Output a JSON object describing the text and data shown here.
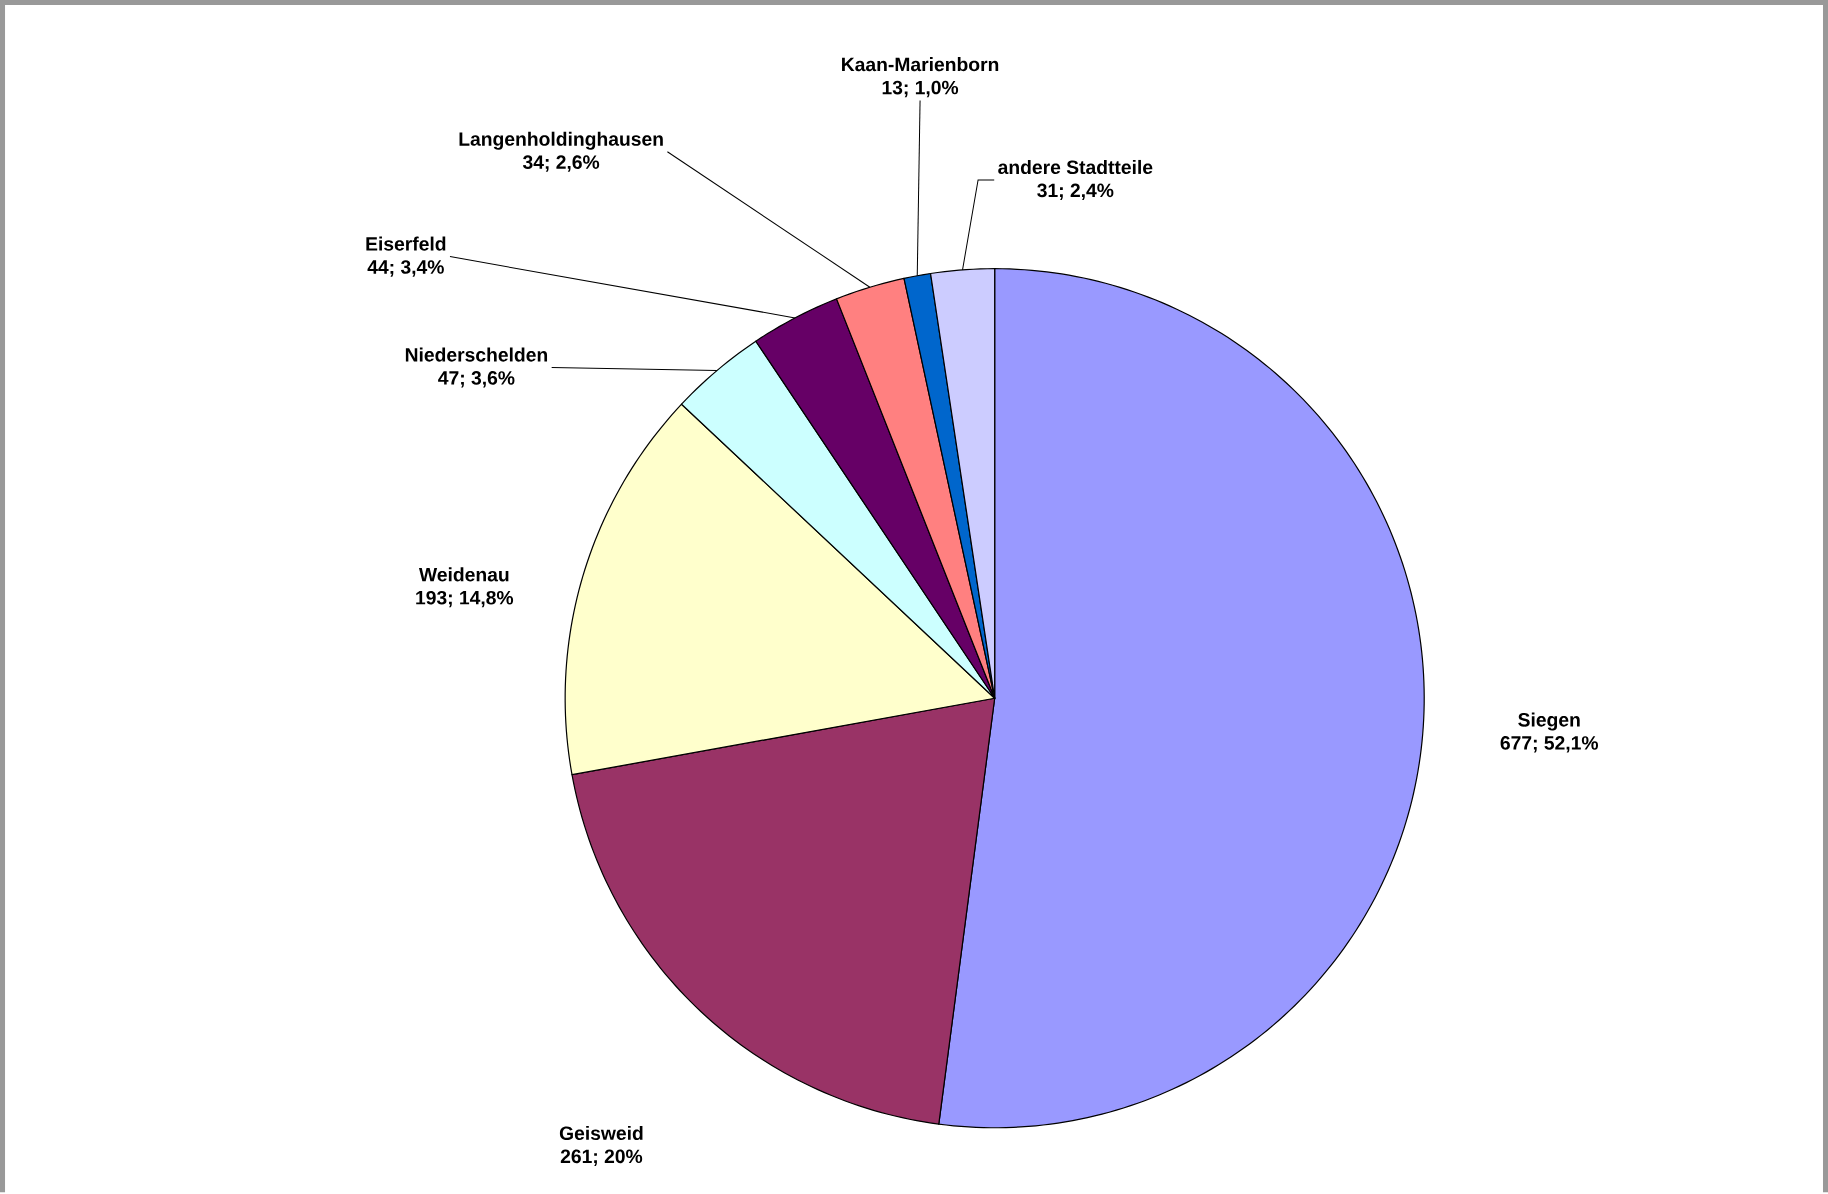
{
  "chart_data": {
    "type": "pie",
    "categories": [
      "Siegen",
      "Geisweid",
      "Weidenau",
      "Niederschelden",
      "Eiserfeld",
      "Langenholdinghausen",
      "Kaan-Marienborn",
      "andere Stadtteile"
    ],
    "values": [
      677,
      261,
      193,
      47,
      44,
      34,
      13,
      31
    ],
    "value_labels": [
      "677; 52,1%",
      "261; 20%",
      "193; 14,8%",
      "47; 3,6%",
      "44; 3,4%",
      "34; 2,6%",
      "13; 1,0%",
      "31; 2,4%"
    ],
    "colors": [
      "#9999ff",
      "#993366",
      "#ffffcc",
      "#ccffff",
      "#660066",
      "#ff8080",
      "#0066cc",
      "#ccccff"
    ]
  }
}
